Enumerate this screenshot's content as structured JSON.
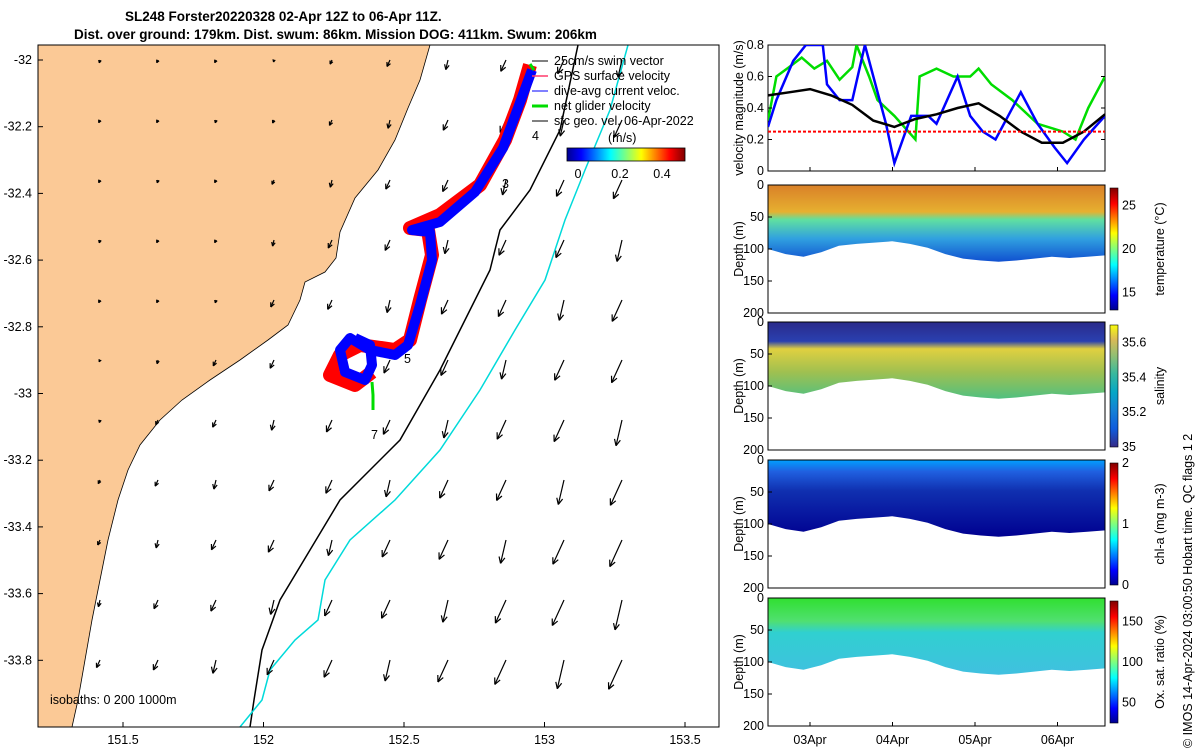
{
  "header": {
    "title_line1": "SL248 Forster20220328 02-Apr 12Z to 06-Apr 11Z.",
    "title_line2": "Dist. over ground: 179km. Dist. swum: 86km. Mission DOG: 411km. Swum: 206km"
  },
  "colors": {
    "land": "#fbc996",
    "isobath_1000": "#00dada",
    "isobath_200": "#000000",
    "gps_velocity": "#ff0000",
    "current": "#0000ff",
    "net_velocity": "#00dd00",
    "mean_line": "#000000"
  },
  "map": {
    "lon_ticks": [
      "151.5",
      "152",
      "152.5",
      "153",
      "153.5"
    ],
    "lat_ticks": [
      "-32",
      "-32.2",
      "-32.4",
      "-32.6",
      "-32.8",
      "-33",
      "-33.2",
      "-33.4",
      "-33.6",
      "-33.8"
    ],
    "legend": [
      "25cm/s swim vector",
      "GPS surface velocity",
      "dive-avg current veloc.",
      "net glider velocity",
      "sfc geo. vel. 06-Apr-2022"
    ],
    "colorbar_label": "(m/s)",
    "colorbar_ticks": [
      "0",
      "0.2",
      "0.4"
    ],
    "isobath_label": "isobaths: 0   200  1000m",
    "day_labels": [
      "3",
      "4",
      "5",
      "7"
    ]
  },
  "chart_data": [
    {
      "type": "line",
      "ylabel": "velocity magnitude (m/s)",
      "ylim": [
        0,
        0.8
      ],
      "yticks": [
        "0",
        "0.2",
        "0.4",
        "0.6",
        "0.8"
      ],
      "xlim": [
        0,
        4
      ],
      "series": [
        {
          "color": "green",
          "x": [
            0,
            0.1,
            0.25,
            0.4,
            0.55,
            0.7,
            0.85,
            1.0,
            1.05,
            1.2,
            1.3,
            1.5,
            1.75,
            1.8,
            2.0,
            2.2,
            2.4,
            2.5,
            2.65,
            2.9,
            3.2,
            3.5,
            3.65,
            3.8,
            4.0
          ],
          "y": [
            0.32,
            0.6,
            0.66,
            0.72,
            0.65,
            0.7,
            0.58,
            0.66,
            0.8,
            0.6,
            0.45,
            0.35,
            0.2,
            0.6,
            0.65,
            0.6,
            0.6,
            0.65,
            0.55,
            0.45,
            0.3,
            0.25,
            0.2,
            0.4,
            0.6
          ]
        },
        {
          "color": "blue",
          "x": [
            0,
            0.1,
            0.3,
            0.45,
            0.65,
            0.7,
            0.85,
            1.0,
            1.15,
            1.4,
            1.5,
            1.7,
            1.9,
            2.0,
            2.25,
            2.4,
            2.55,
            2.7,
            3.0,
            3.2,
            3.4,
            3.55,
            3.75,
            4.0
          ],
          "y": [
            0.28,
            0.45,
            0.7,
            0.8,
            0.8,
            0.55,
            0.45,
            0.45,
            0.8,
            0.3,
            0.05,
            0.35,
            0.35,
            0.3,
            0.6,
            0.35,
            0.25,
            0.2,
            0.5,
            0.3,
            0.15,
            0.05,
            0.2,
            0.35
          ]
        },
        {
          "color": "black",
          "x": [
            0,
            0.25,
            0.5,
            0.75,
            1.0,
            1.25,
            1.5,
            1.75,
            2.0,
            2.25,
            2.5,
            2.75,
            3.0,
            3.25,
            3.5,
            3.75,
            4.0
          ],
          "y": [
            0.48,
            0.5,
            0.52,
            0.48,
            0.42,
            0.32,
            0.28,
            0.33,
            0.36,
            0.4,
            0.43,
            0.35,
            0.25,
            0.18,
            0.18,
            0.25,
            0.36
          ]
        },
        {
          "color": "red",
          "x": [
            0,
            4
          ],
          "y": [
            0.25,
            0.25
          ]
        }
      ]
    },
    {
      "type": "heatmap",
      "ylabel": "Depth (m)",
      "yticks": [
        "0",
        "50",
        "100",
        "150",
        "200"
      ],
      "colorbar_label": "temperature (°C)",
      "colorbar_ticks": [
        "15",
        "20",
        "25"
      ],
      "range": [
        13,
        27
      ]
    },
    {
      "type": "heatmap",
      "ylabel": "Depth (m)",
      "yticks": [
        "0",
        "50",
        "100",
        "150",
        "200"
      ],
      "colorbar_label": "salinity",
      "colorbar_ticks": [
        "35",
        "35.2",
        "35.4",
        "35.6"
      ],
      "range": [
        35,
        35.7
      ]
    },
    {
      "type": "heatmap",
      "ylabel": "Depth (m)",
      "yticks": [
        "0",
        "50",
        "100",
        "150",
        "200"
      ],
      "colorbar_label": "chl-a (mg m-3)",
      "colorbar_ticks": [
        "0",
        "1",
        "2"
      ],
      "range": [
        0,
        2
      ]
    },
    {
      "type": "heatmap",
      "ylabel": "Depth (m)",
      "yticks": [
        "0",
        "50",
        "100",
        "150",
        "200"
      ],
      "colorbar_label": "Ox. sat. ratio (%)",
      "colorbar_ticks": [
        "50",
        "100",
        "150"
      ],
      "range": [
        25,
        175
      ],
      "xticks": [
        "03Apr",
        "04Apr",
        "05Apr",
        "06Apr"
      ]
    }
  ],
  "footer": {
    "credit": "© IMOS 14-Apr-2024 03:00:50 Hobart time. QC flags 1  2"
  }
}
